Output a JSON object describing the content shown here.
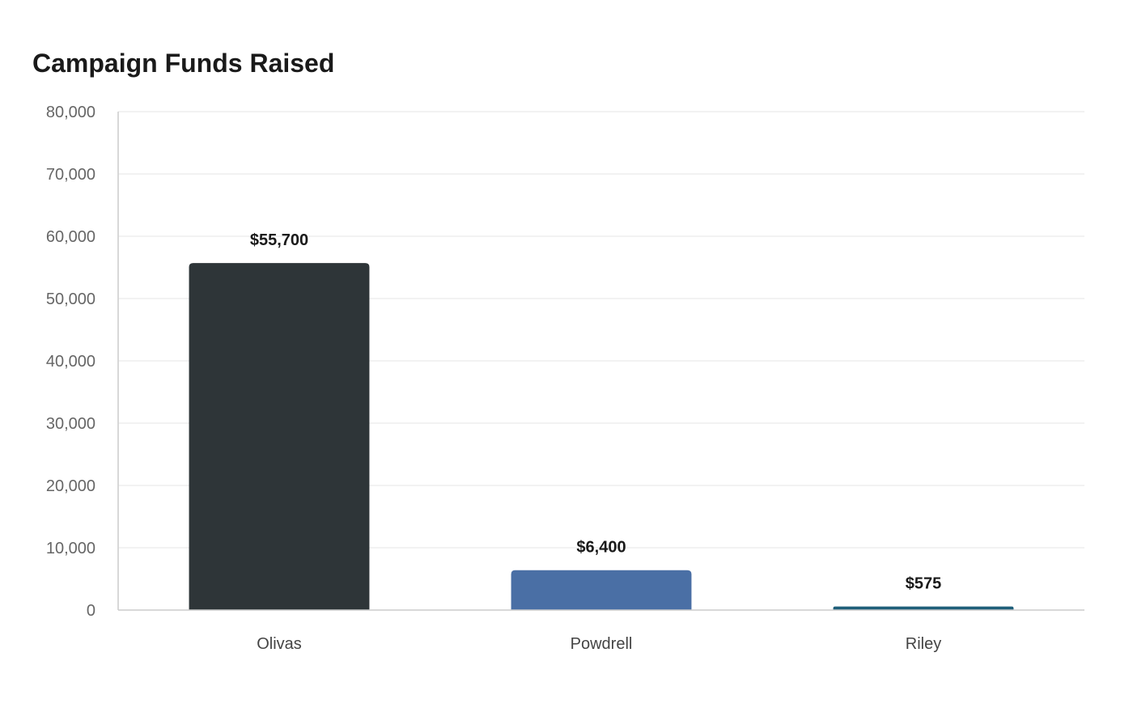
{
  "chart_data": {
    "type": "bar",
    "title": "Campaign Funds Raised",
    "xlabel": "",
    "ylabel": "",
    "categories": [
      "Olivas",
      "Powdrell",
      "Riley"
    ],
    "values": [
      55700,
      6400,
      575
    ],
    "value_labels": [
      "$55,700",
      "$6,400",
      "$575"
    ],
    "ylim": [
      0,
      80000
    ],
    "yticks": [
      0,
      10000,
      20000,
      30000,
      40000,
      50000,
      60000,
      70000,
      80000
    ],
    "ytick_labels": [
      "0",
      "10,000",
      "20,000",
      "30,000",
      "40,000",
      "50,000",
      "60,000",
      "70,000",
      "80,000"
    ],
    "bar_colors": [
      "#2e3538",
      "#4a6fa5",
      "#1f5f7a"
    ],
    "grid": true,
    "legend": "none"
  }
}
